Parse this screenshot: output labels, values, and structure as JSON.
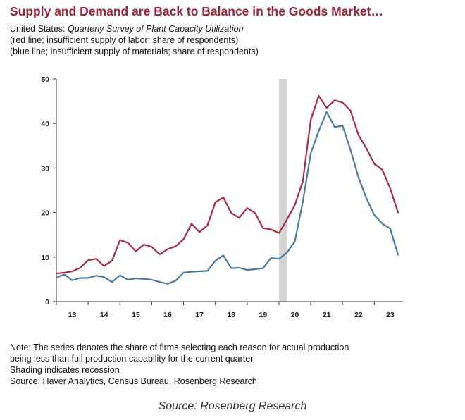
{
  "header": {
    "title": "Supply and Demand are Back to Balance in the Goods Market…",
    "subtitle_prefix": "United States: ",
    "subtitle_italic": "Quarterly Survey of Plant Capacity Utilization",
    "line2": "(red line; insufficient supply of labor; share of respondents)",
    "line3": "(blue line; insufficient supply of materials; share of respondents)"
  },
  "notes": {
    "line1": "Note: The series denotes the share of firms selecting each reason for actual production",
    "line2": "being less than full production capability for the current quarter",
    "line3": "Shading indicates recession",
    "line4": "Source: Haver Analytics, Census Bureau, Rosenberg Research"
  },
  "caption": "Source: Rosenberg Research",
  "colors": {
    "labor": "#b02a3e",
    "materials": "#4a7aa3",
    "recession": "#d4d4d4"
  },
  "chart_data": {
    "type": "line",
    "x_tick_labels": [
      "13",
      "14",
      "15",
      "16",
      "17",
      "18",
      "19",
      "20",
      "21",
      "22",
      "23"
    ],
    "y_tick_labels": [
      "0",
      "10",
      "20",
      "30",
      "40",
      "50"
    ],
    "ylim": [
      0,
      50
    ],
    "xlim": [
      2013.0,
      2023.9
    ],
    "grid": false,
    "recession": [
      2020.0,
      2020.25
    ],
    "series": [
      {
        "color": "#b02a3e",
        "x": [
          2013.0,
          2013.25,
          2013.5,
          2013.75,
          2014.0,
          2014.25,
          2014.5,
          2014.75,
          2015.0,
          2015.25,
          2015.5,
          2015.75,
          2016.0,
          2016.25,
          2016.5,
          2016.75,
          2017.0,
          2017.25,
          2017.5,
          2017.75,
          2018.0,
          2018.25,
          2018.5,
          2018.75,
          2019.0,
          2019.25,
          2019.5,
          2019.75,
          2020.0,
          2020.25,
          2020.5,
          2020.75,
          2021.0,
          2021.25,
          2021.5,
          2021.75,
          2022.0,
          2022.25,
          2022.5,
          2022.75,
          2023.0,
          2023.25,
          2023.5,
          2023.75
        ],
        "values": [
          6.3,
          6.5,
          6.8,
          7.6,
          9.3,
          9.6,
          8.0,
          9.2,
          13.8,
          13.2,
          11.3,
          12.8,
          12.3,
          10.6,
          11.8,
          12.4,
          14.0,
          17.5,
          15.6,
          17.1,
          22.3,
          23.4,
          19.9,
          18.8,
          21.0,
          19.9,
          16.5,
          16.2,
          15.4,
          18.4,
          21.7,
          27.0,
          40.8,
          46.2,
          43.5,
          45.2,
          44.7,
          42.9,
          37.4,
          34.4,
          30.9,
          29.6,
          25.4,
          19.9
        ]
      },
      {
        "color": "#4a7aa3",
        "x": [
          2013.0,
          2013.25,
          2013.5,
          2013.75,
          2014.0,
          2014.25,
          2014.5,
          2014.75,
          2015.0,
          2015.25,
          2015.5,
          2015.75,
          2016.0,
          2016.25,
          2016.5,
          2016.75,
          2017.0,
          2017.25,
          2017.5,
          2017.75,
          2018.0,
          2018.25,
          2018.5,
          2018.75,
          2019.0,
          2019.25,
          2019.5,
          2019.75,
          2020.0,
          2020.25,
          2020.5,
          2020.75,
          2021.0,
          2021.25,
          2021.5,
          2021.75,
          2022.0,
          2022.25,
          2022.5,
          2022.75,
          2023.0,
          2023.25,
          2023.5,
          2023.75
        ],
        "values": [
          5.4,
          6.1,
          4.8,
          5.3,
          5.3,
          5.8,
          5.5,
          4.4,
          5.9,
          4.9,
          5.2,
          5.1,
          4.9,
          4.4,
          4.0,
          4.7,
          6.5,
          6.7,
          6.8,
          6.9,
          9.2,
          10.4,
          7.5,
          7.6,
          7.1,
          7.3,
          7.5,
          9.8,
          9.6,
          11.0,
          13.5,
          22.4,
          33.3,
          38.3,
          42.6,
          39.2,
          39.5,
          34.1,
          27.9,
          23.2,
          19.4,
          17.5,
          16.4,
          10.4
        ]
      }
    ]
  }
}
